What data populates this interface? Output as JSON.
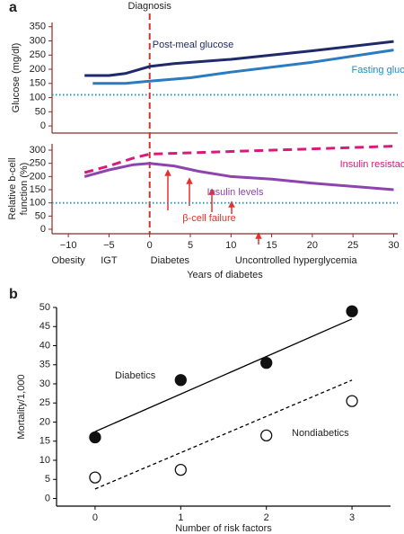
{
  "chart_data": [
    {
      "type": "line",
      "panel": "a",
      "y_label": [
        "Glucose (mg/dl)"
      ],
      "xlim": [
        -12,
        30.5
      ],
      "ylim": [
        -25,
        365
      ],
      "yticks": [
        0,
        50,
        100,
        150,
        200,
        250,
        300,
        350
      ],
      "vline": {
        "value": 0,
        "label": "Diagnosis",
        "color": "#d9302a"
      },
      "ref_line": {
        "value": 110,
        "color": "#1a9aa8"
      },
      "series": [
        {
          "name": "Post-meal glucose",
          "color": "#1f2a6b",
          "label_color": "#1f2a6b",
          "dash": false,
          "x": [
            -8,
            -5,
            -3,
            0,
            3,
            10,
            20,
            30
          ],
          "values": [
            178,
            178,
            185,
            210,
            220,
            235,
            265,
            298
          ]
        },
        {
          "name": "Fasting glucose",
          "color": "#2a7bbf",
          "label_color": "#1a8fc4",
          "dash": false,
          "x": [
            -7,
            -3,
            0,
            5,
            10,
            20,
            30
          ],
          "values": [
            150,
            150,
            158,
            170,
            190,
            225,
            268
          ]
        }
      ]
    },
    {
      "type": "line",
      "y_label": [
        "Relative b-cell",
        "function (%)"
      ],
      "x_label": "Years of diabetes",
      "xlim": [
        -12,
        30.5
      ],
      "ylim": [
        -17,
        324
      ],
      "yticks": [
        0,
        50,
        100,
        150,
        200,
        250,
        300
      ],
      "xticks": [
        {
          "value": -10,
          "label": "−10"
        },
        {
          "value": -5,
          "label": "−5"
        },
        0,
        5,
        10,
        15,
        20,
        25,
        30
      ],
      "stage_labels": [
        {
          "value": -10,
          "label": "Obesity"
        },
        {
          "value": -5,
          "label": "IGT"
        },
        {
          "value": 2.5,
          "label": "Diabetes"
        },
        {
          "value": 18,
          "label": "Uncontrolled hyperglycemia"
        }
      ],
      "ref_line": {
        "value": 100,
        "color": "#1a9aa8"
      },
      "annotation": "β-cell failure",
      "annotation_color": "#e8302a",
      "series": [
        {
          "name": "Insulin resistace",
          "color": "#d81b7a",
          "label_color": "#d81b7a",
          "dash": true,
          "x": [
            -8,
            -5,
            -2,
            0,
            5,
            10,
            20,
            30
          ],
          "values": [
            215,
            240,
            270,
            285,
            290,
            295,
            305,
            315
          ]
        },
        {
          "name": "Insulin levels",
          "color": "#8e44ad",
          "label_color": "#8e44ad",
          "dash": false,
          "x": [
            -8,
            -5,
            -2,
            0,
            3,
            6,
            10,
            15,
            20,
            30
          ],
          "values": [
            200,
            225,
            245,
            250,
            240,
            220,
            200,
            190,
            175,
            150
          ]
        }
      ]
    },
    {
      "type": "scatter",
      "panel": "b",
      "y_label": [
        "Mortality/1,000"
      ],
      "x_label": "Number of risk factors",
      "xlim": [
        -0.45,
        3.45
      ],
      "ylim": [
        -2,
        50
      ],
      "xticks": [
        0,
        1,
        2,
        3
      ],
      "yticks": [
        0,
        5,
        10,
        15,
        20,
        25,
        30,
        35,
        40,
        45,
        50
      ],
      "series": [
        {
          "name": "Diabetics",
          "filled": true,
          "x": [
            0,
            1,
            2,
            3
          ],
          "values": [
            16,
            31,
            35.5,
            49
          ]
        },
        {
          "name": "Nondiabetics",
          "filled": false,
          "x": [
            0,
            1,
            2,
            3
          ],
          "values": [
            5.5,
            7.5,
            16.5,
            25.5
          ]
        }
      ],
      "trend_lines": [
        {
          "dash": false,
          "x": [
            0,
            3
          ],
          "values": [
            17.5,
            47
          ]
        },
        {
          "dash": true,
          "x": [
            0,
            3
          ],
          "values": [
            2.5,
            31
          ]
        }
      ]
    }
  ]
}
